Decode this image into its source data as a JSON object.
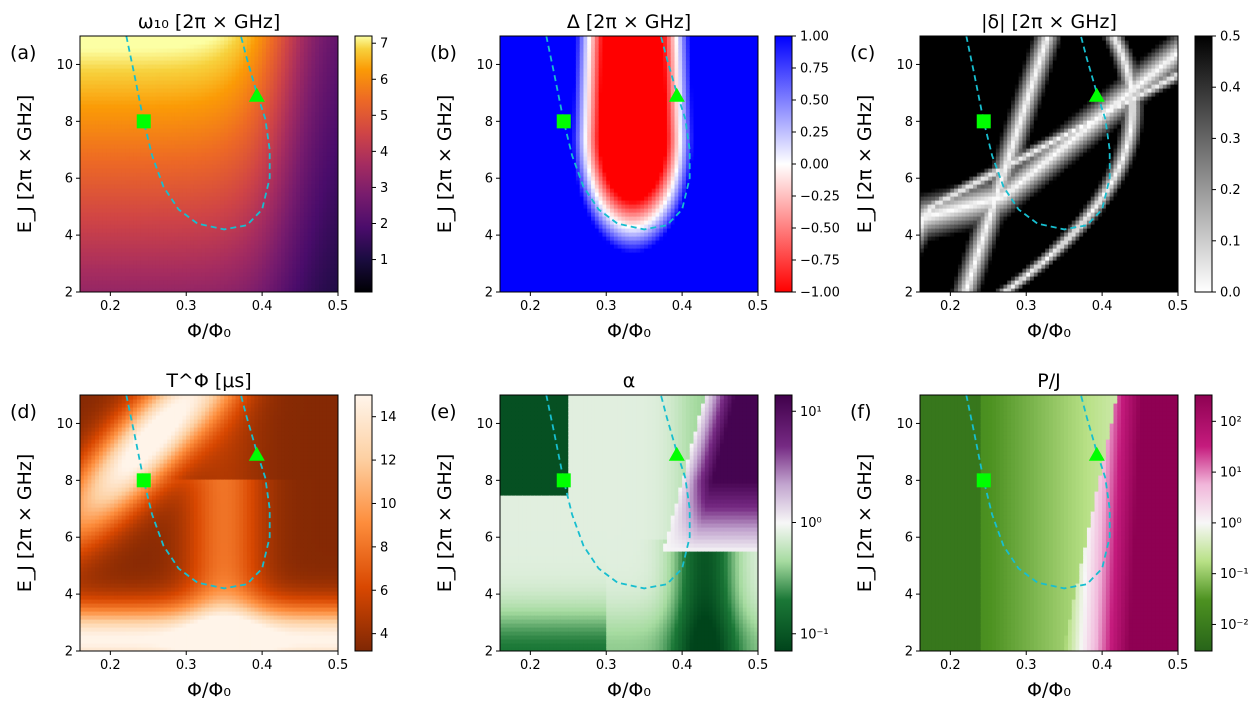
{
  "chart_data": [
    {
      "id": "a",
      "type": "heatmap",
      "panel_label": "(a)",
      "title": "ω₁₀ [2π × GHz]",
      "xlabel": "Φ/Φ₀",
      "ylabel": "E_J [2π × GHz]",
      "xlim": [
        0.16,
        0.5
      ],
      "ylim": [
        2,
        11
      ],
      "xticks": [
        {
          "v": 0.2,
          "l": "0.2"
        },
        {
          "v": 0.3,
          "l": "0.3"
        },
        {
          "v": 0.4,
          "l": "0.4"
        },
        {
          "v": 0.5,
          "l": "0.5"
        }
      ],
      "yticks": [
        {
          "v": 2,
          "l": "2"
        },
        {
          "v": 4,
          "l": "4"
        },
        {
          "v": 6,
          "l": "6"
        },
        {
          "v": 8,
          "l": "8"
        },
        {
          "v": 10,
          "l": "10"
        }
      ],
      "colormap": "inferno",
      "color_range": [
        0.1,
        7.2
      ],
      "scale": "linear",
      "cticks": [
        {
          "v": 1,
          "l": "1"
        },
        {
          "v": 2,
          "l": "2"
        },
        {
          "v": 3,
          "l": "3"
        },
        {
          "v": 4,
          "l": "4"
        },
        {
          "v": 5,
          "l": "5"
        },
        {
          "v": 6,
          "l": "6"
        },
        {
          "v": 7,
          "l": "7"
        }
      ]
    },
    {
      "id": "b",
      "type": "heatmap",
      "panel_label": "(b)",
      "title": "Δ [2π × GHz]",
      "xlabel": "Φ/Φ₀",
      "ylabel": "E_J [2π × GHz]",
      "xlim": [
        0.16,
        0.5
      ],
      "ylim": [
        2,
        11
      ],
      "xticks": [
        {
          "v": 0.2,
          "l": "0.2"
        },
        {
          "v": 0.3,
          "l": "0.3"
        },
        {
          "v": 0.4,
          "l": "0.4"
        },
        {
          "v": 0.5,
          "l": "0.5"
        }
      ],
      "yticks": [
        {
          "v": 2,
          "l": "2"
        },
        {
          "v": 4,
          "l": "4"
        },
        {
          "v": 6,
          "l": "6"
        },
        {
          "v": 8,
          "l": "8"
        },
        {
          "v": 10,
          "l": "10"
        }
      ],
      "colormap": "bwr_r",
      "color_range": [
        -1,
        1
      ],
      "scale": "linear",
      "cticks": [
        {
          "v": -1,
          "l": "−1.00"
        },
        {
          "v": -0.75,
          "l": "−0.75"
        },
        {
          "v": -0.5,
          "l": "−0.50"
        },
        {
          "v": -0.25,
          "l": "−0.25"
        },
        {
          "v": 0,
          "l": "0.00"
        },
        {
          "v": 0.25,
          "l": "0.25"
        },
        {
          "v": 0.5,
          "l": "0.50"
        },
        {
          "v": 0.75,
          "l": "0.75"
        },
        {
          "v": 1,
          "l": "1.00"
        }
      ]
    },
    {
      "id": "c",
      "type": "heatmap",
      "panel_label": "(c)",
      "title": "|δ| [2π × GHz]",
      "xlabel": "Φ/Φ₀",
      "ylabel": "E_J [2π × GHz]",
      "xlim": [
        0.16,
        0.5
      ],
      "ylim": [
        2,
        11
      ],
      "xticks": [
        {
          "v": 0.2,
          "l": "0.2"
        },
        {
          "v": 0.3,
          "l": "0.3"
        },
        {
          "v": 0.4,
          "l": "0.4"
        },
        {
          "v": 0.5,
          "l": "0.5"
        }
      ],
      "yticks": [
        {
          "v": 2,
          "l": "2"
        },
        {
          "v": 4,
          "l": "4"
        },
        {
          "v": 6,
          "l": "6"
        },
        {
          "v": 8,
          "l": "8"
        },
        {
          "v": 10,
          "l": "10"
        }
      ],
      "colormap": "gray_r",
      "color_range": [
        0,
        0.5
      ],
      "scale": "linear",
      "cticks": [
        {
          "v": 0,
          "l": "0.0"
        },
        {
          "v": 0.1,
          "l": "0.1"
        },
        {
          "v": 0.2,
          "l": "0.2"
        },
        {
          "v": 0.3,
          "l": "0.3"
        },
        {
          "v": 0.4,
          "l": "0.4"
        },
        {
          "v": 0.5,
          "l": "0.5"
        }
      ]
    },
    {
      "id": "d",
      "type": "heatmap",
      "panel_label": "(d)",
      "title": "T^Φ [μs]",
      "xlabel": "Φ/Φ₀",
      "ylabel": "E_J [2π × GHz]",
      "xlim": [
        0.16,
        0.5
      ],
      "ylim": [
        2,
        11
      ],
      "xticks": [
        {
          "v": 0.2,
          "l": "0.2"
        },
        {
          "v": 0.3,
          "l": "0.3"
        },
        {
          "v": 0.4,
          "l": "0.4"
        },
        {
          "v": 0.5,
          "l": "0.5"
        }
      ],
      "yticks": [
        {
          "v": 2,
          "l": "2"
        },
        {
          "v": 4,
          "l": "4"
        },
        {
          "v": 6,
          "l": "6"
        },
        {
          "v": 8,
          "l": "8"
        },
        {
          "v": 10,
          "l": "10"
        }
      ],
      "colormap": "Oranges_r",
      "color_range": [
        3.2,
        15
      ],
      "scale": "linear",
      "cticks": [
        {
          "v": 4,
          "l": "4"
        },
        {
          "v": 6,
          "l": "6"
        },
        {
          "v": 8,
          "l": "8"
        },
        {
          "v": 10,
          "l": "10"
        },
        {
          "v": 12,
          "l": "12"
        },
        {
          "v": 14,
          "l": "14"
        }
      ]
    },
    {
      "id": "e",
      "type": "heatmap",
      "panel_label": "(e)",
      "title": "α",
      "xlabel": "Φ/Φ₀",
      "ylabel": "E_J [2π × GHz]",
      "xlim": [
        0.16,
        0.5
      ],
      "ylim": [
        2,
        11
      ],
      "xticks": [
        {
          "v": 0.2,
          "l": "0.2"
        },
        {
          "v": 0.3,
          "l": "0.3"
        },
        {
          "v": 0.4,
          "l": "0.4"
        },
        {
          "v": 0.5,
          "l": "0.5"
        }
      ],
      "yticks": [
        {
          "v": 2,
          "l": "2"
        },
        {
          "v": 4,
          "l": "4"
        },
        {
          "v": 6,
          "l": "6"
        },
        {
          "v": 8,
          "l": "8"
        },
        {
          "v": 10,
          "l": "10"
        }
      ],
      "colormap": "PRGn",
      "color_range": [
        0.07,
        14
      ],
      "scale": "log",
      "cticks": [
        {
          "v": 0.1,
          "l": "10⁻¹"
        },
        {
          "v": 1,
          "l": "10⁰"
        },
        {
          "v": 10,
          "l": "10¹"
        }
      ]
    },
    {
      "id": "f",
      "type": "heatmap",
      "panel_label": "(f)",
      "title": "P/J",
      "xlabel": "Φ/Φ₀",
      "ylabel": "E_J [2π × GHz]",
      "xlim": [
        0.16,
        0.5
      ],
      "ylim": [
        2,
        11
      ],
      "xticks": [
        {
          "v": 0.2,
          "l": "0.2"
        },
        {
          "v": 0.3,
          "l": "0.3"
        },
        {
          "v": 0.4,
          "l": "0.4"
        },
        {
          "v": 0.5,
          "l": "0.5"
        }
      ],
      "yticks": [
        {
          "v": 2,
          "l": "2"
        },
        {
          "v": 4,
          "l": "4"
        },
        {
          "v": 6,
          "l": "6"
        },
        {
          "v": 8,
          "l": "8"
        },
        {
          "v": 10,
          "l": "10"
        }
      ],
      "colormap": "PiYG_r",
      "color_range": [
        0.003,
        330
      ],
      "scale": "log",
      "cticks": [
        {
          "v": 0.01,
          "l": "10⁻²"
        },
        {
          "v": 0.1,
          "l": "10⁻¹"
        },
        {
          "v": 1,
          "l": "10⁰"
        },
        {
          "v": 10,
          "l": "10¹"
        },
        {
          "v": 100,
          "l": "10²"
        }
      ]
    }
  ],
  "overlay": {
    "dashed_curve": {
      "color": "#17becf",
      "points": [
        [
          0.221,
          11
        ],
        [
          0.232,
          9.6
        ],
        [
          0.244,
          8.0
        ],
        [
          0.255,
          6.8
        ],
        [
          0.27,
          5.7
        ],
        [
          0.29,
          4.9
        ],
        [
          0.315,
          4.4
        ],
        [
          0.35,
          4.2
        ],
        [
          0.38,
          4.35
        ],
        [
          0.4,
          4.9
        ],
        [
          0.41,
          6.0
        ],
        [
          0.41,
          7.0
        ],
        [
          0.404,
          8.1
        ],
        [
          0.393,
          9.0
        ],
        [
          0.38,
          10.2
        ],
        [
          0.372,
          11
        ]
      ]
    },
    "square_marker": {
      "x": 0.244,
      "y": 8.0,
      "color": "#00ff00"
    },
    "triangle_marker": {
      "x": 0.393,
      "y": 8.9,
      "color": "#00ff00"
    }
  }
}
